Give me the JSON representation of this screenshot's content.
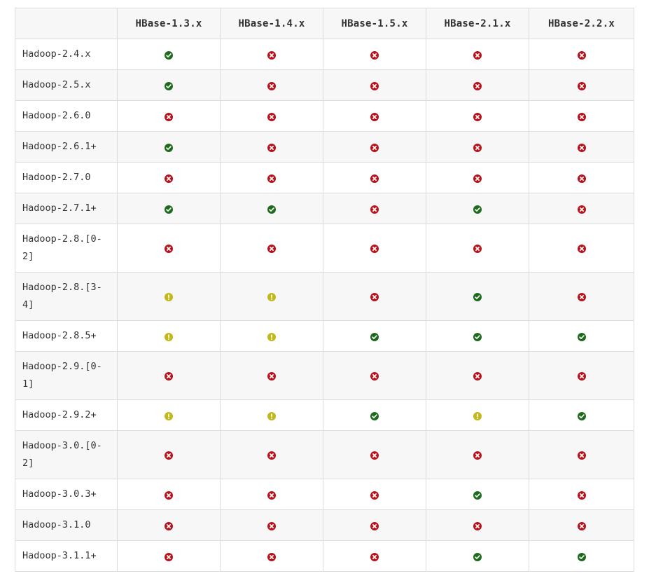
{
  "table": {
    "columns": [
      "",
      "HBase-1.3.x",
      "HBase-1.4.x",
      "HBase-1.5.x",
      "HBase-2.1.x",
      "HBase-2.2.x"
    ],
    "rows": [
      {
        "label": "Hadoop-2.4.x",
        "cells": [
          "yes",
          "no",
          "no",
          "no",
          "no"
        ]
      },
      {
        "label": "Hadoop-2.5.x",
        "cells": [
          "yes",
          "no",
          "no",
          "no",
          "no"
        ]
      },
      {
        "label": "Hadoop-2.6.0",
        "cells": [
          "no",
          "no",
          "no",
          "no",
          "no"
        ]
      },
      {
        "label": "Hadoop-2.6.1+",
        "cells": [
          "yes",
          "no",
          "no",
          "no",
          "no"
        ]
      },
      {
        "label": "Hadoop-2.7.0",
        "cells": [
          "no",
          "no",
          "no",
          "no",
          "no"
        ]
      },
      {
        "label": "Hadoop-2.7.1+",
        "cells": [
          "yes",
          "yes",
          "no",
          "yes",
          "no"
        ]
      },
      {
        "label": "Hadoop-2.8.[0-2]",
        "cells": [
          "no",
          "no",
          "no",
          "no",
          "no"
        ]
      },
      {
        "label": "Hadoop-2.8.[3-4]",
        "cells": [
          "warn",
          "warn",
          "no",
          "yes",
          "no"
        ]
      },
      {
        "label": "Hadoop-2.8.5+",
        "cells": [
          "warn",
          "warn",
          "yes",
          "yes",
          "yes"
        ]
      },
      {
        "label": "Hadoop-2.9.[0-1]",
        "cells": [
          "no",
          "no",
          "no",
          "no",
          "no"
        ]
      },
      {
        "label": "Hadoop-2.9.2+",
        "cells": [
          "warn",
          "warn",
          "yes",
          "warn",
          "yes"
        ]
      },
      {
        "label": "Hadoop-3.0.[0-2]",
        "cells": [
          "no",
          "no",
          "no",
          "no",
          "no"
        ]
      },
      {
        "label": "Hadoop-3.0.3+",
        "cells": [
          "no",
          "no",
          "no",
          "yes",
          "no"
        ]
      },
      {
        "label": "Hadoop-3.1.0",
        "cells": [
          "no",
          "no",
          "no",
          "no",
          "no"
        ]
      },
      {
        "label": "Hadoop-3.1.1+",
        "cells": [
          "no",
          "no",
          "no",
          "yes",
          "yes"
        ]
      }
    ]
  },
  "icons": {
    "yes": {
      "name": "check-circle-icon",
      "color": "#1e6b1e"
    },
    "no": {
      "name": "x-circle-icon",
      "color": "#b8131c"
    },
    "warn": {
      "name": "exclamation-circle-icon",
      "color": "#c2b81a"
    }
  }
}
